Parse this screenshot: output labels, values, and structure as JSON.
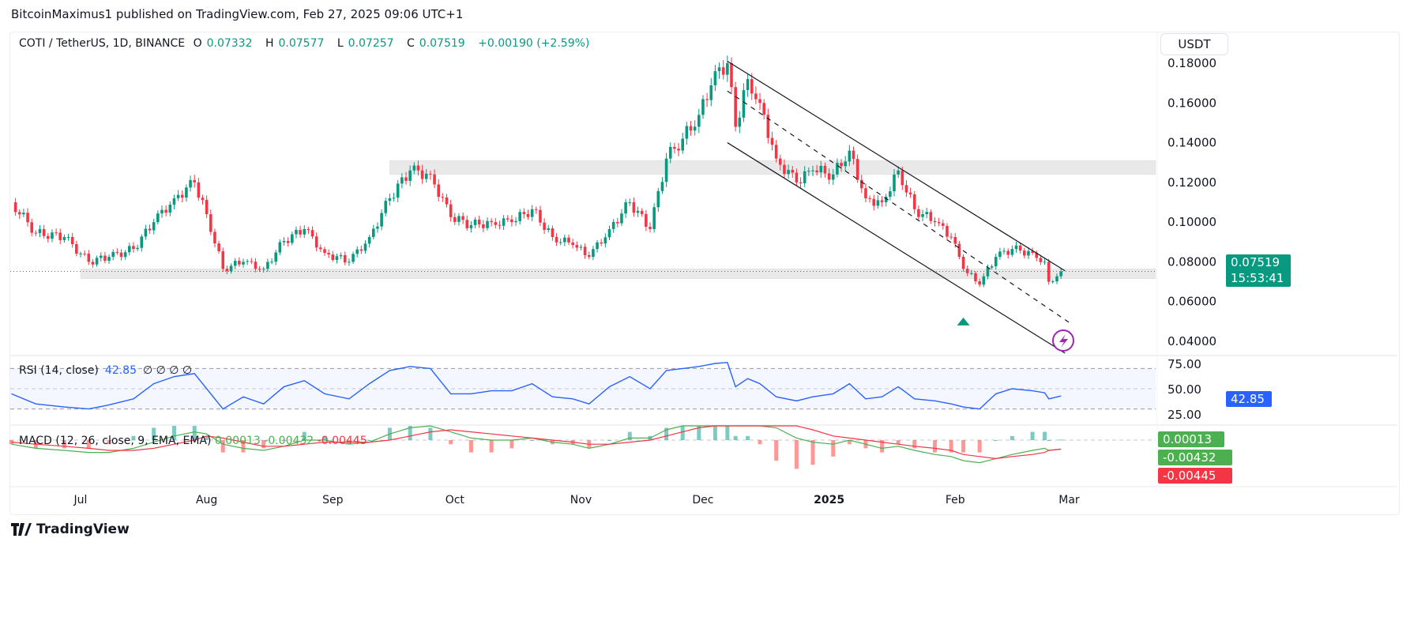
{
  "publisher_line": "BitcoinMaximus1 published on TradingView.com, Feb 27, 2025 09:06 UTC+1",
  "footer_brand": "TradingView",
  "legend": {
    "symbol": "COTI / TetherUS, 1D, BINANCE",
    "o_label": "O",
    "o": "0.07332",
    "h_label": "H",
    "h": "0.07577",
    "l_label": "L",
    "l": "0.07257",
    "c_label": "C",
    "c": "0.07519",
    "change": "+0.00190 (+2.59%)"
  },
  "currency_button": "USDT",
  "price_tag": {
    "price": "0.07519",
    "countdown": "15:53:41"
  },
  "rsi_legend": {
    "title": "RSI (14, close)",
    "value": "42.85",
    "extras": "∅ ∅ ∅ ∅",
    "tag": "42.85"
  },
  "macd_legend": {
    "title": "MACD (12, 26, close, 9, EMA, EMA)",
    "hist": "0.00013",
    "macd": "-0.00432",
    "signal": "-0.00445"
  },
  "colors": {
    "up": "#089981",
    "down": "#f23645",
    "rsi": "#2962ff",
    "macd_line": "#4caf50",
    "signal_line": "#f23645",
    "zone": "#e0e0e0",
    "alert": "#9c27b0"
  },
  "icons": [
    "tradingview-logo-icon",
    "lightning-alert-icon",
    "buy-arrow-icon"
  ],
  "chart_data": [
    {
      "type": "candlestick",
      "title": "COTI / TetherUS, 1D, BINANCE",
      "ylim": [
        0.03,
        0.19
      ],
      "yticks": [
        "0.18000",
        "0.16000",
        "0.14000",
        "0.12000",
        "0.10000",
        "0.08000",
        "0.06000",
        "0.04000"
      ],
      "xticks": [
        "Jul",
        "Aug",
        "Sep",
        "Oct",
        "Nov",
        "Dec",
        "2025",
        "Feb",
        "Mar"
      ],
      "grid": false,
      "closes": [
        [
          "2024-06-14",
          0.11
        ],
        [
          "2024-06-20",
          0.0945
        ],
        [
          "2024-06-27",
          0.0925
        ],
        [
          "2024-07-03",
          0.08
        ],
        [
          "2024-07-08",
          0.0825
        ],
        [
          "2024-07-14",
          0.0865
        ],
        [
          "2024-07-19",
          0.1
        ],
        [
          "2024-07-24",
          0.112
        ],
        [
          "2024-07-29",
          0.12
        ],
        [
          "2024-08-01",
          0.104
        ],
        [
          "2024-08-05",
          0.0765
        ],
        [
          "2024-08-10",
          0.08
        ],
        [
          "2024-08-15",
          0.0765
        ],
        [
          "2024-08-20",
          0.0905
        ],
        [
          "2024-08-25",
          0.0965
        ],
        [
          "2024-08-30",
          0.0845
        ],
        [
          "2024-09-05",
          0.08
        ],
        [
          "2024-09-10",
          0.0925
        ],
        [
          "2024-09-15",
          0.112
        ],
        [
          "2024-09-20",
          0.126
        ],
        [
          "2024-09-25",
          0.124
        ],
        [
          "2024-09-30",
          0.1025
        ],
        [
          "2024-10-05",
          0.0985
        ],
        [
          "2024-10-10",
          0.1
        ],
        [
          "2024-10-15",
          0.1
        ],
        [
          "2024-10-20",
          0.1065
        ],
        [
          "2024-10-25",
          0.0925
        ],
        [
          "2024-10-30",
          0.0885
        ],
        [
          "2024-11-03",
          0.0825
        ],
        [
          "2024-11-08",
          0.0965
        ],
        [
          "2024-11-13",
          0.11
        ],
        [
          "2024-11-18",
          0.0965
        ],
        [
          "2024-11-22",
          0.132
        ],
        [
          "2024-11-26",
          0.142
        ],
        [
          "2024-11-30",
          0.154
        ],
        [
          "2024-12-04",
          0.176
        ],
        [
          "2024-12-07",
          0.18
        ],
        [
          "2024-12-09",
          0.148
        ],
        [
          "2024-12-12",
          0.172
        ],
        [
          "2024-12-15",
          0.16
        ],
        [
          "2024-12-19",
          0.132
        ],
        [
          "2024-12-24",
          0.12
        ],
        [
          "2024-12-28",
          0.126
        ],
        [
          "2025-01-02",
          0.124
        ],
        [
          "2025-01-06",
          0.136
        ],
        [
          "2025-01-10",
          0.112
        ],
        [
          "2025-01-14",
          0.11
        ],
        [
          "2025-01-18",
          0.126
        ],
        [
          "2025-01-22",
          0.1065
        ],
        [
          "2025-01-27",
          0.1
        ],
        [
          "2025-01-31",
          0.0925
        ],
        [
          "2025-02-03",
          0.0765
        ],
        [
          "2025-02-07",
          0.0685
        ],
        [
          "2025-02-11",
          0.0825
        ],
        [
          "2025-02-15",
          0.0865
        ],
        [
          "2025-02-20",
          0.0845
        ],
        [
          "2025-02-23",
          0.08
        ],
        [
          "2025-02-24",
          0.07
        ],
        [
          "2025-02-27",
          0.07519
        ]
      ],
      "zones": [
        {
          "from": "2024-09-15",
          "low": 0.124,
          "high": 0.131
        },
        {
          "from": "2024-07-01",
          "low": 0.0715,
          "high": 0.0765
        }
      ],
      "channel": [
        {
          "style": "solid",
          "from": [
            "2024-12-07",
            0.181
          ],
          "to": [
            "2025-02-28",
            0.0755
          ]
        },
        {
          "style": "dashed",
          "from": [
            "2024-12-07",
            0.166
          ],
          "to": [
            "2025-03-01",
            0.0495
          ]
        },
        {
          "style": "solid",
          "from": [
            "2024-12-07",
            0.14
          ],
          "to": [
            "2025-02-28",
            0.034
          ]
        }
      ],
      "markers": [
        {
          "type": "buy-arrow",
          "date": "2025-02-03",
          "price": 0.05
        }
      ]
    },
    {
      "type": "line",
      "title": "RSI (14, close)",
      "ylim": [
        15,
        85
      ],
      "yticks": [
        "75.00",
        "50.00",
        "25.00"
      ],
      "bands": [
        70,
        50,
        30
      ],
      "values": [
        45,
        35,
        32,
        30,
        34,
        40,
        55,
        62,
        65,
        50,
        30,
        42,
        35,
        52,
        58,
        45,
        40,
        55,
        68,
        72,
        70,
        45,
        45,
        48,
        48,
        55,
        42,
        40,
        35,
        52,
        62,
        50,
        68,
        70,
        72,
        75,
        76,
        52,
        60,
        55,
        42,
        38,
        42,
        45,
        55,
        40,
        42,
        52,
        40,
        38,
        35,
        32,
        30,
        45,
        50,
        48,
        46,
        40,
        42.85
      ]
    },
    {
      "type": "line",
      "title": "MACD (12, 26, close, 9, EMA, EMA)",
      "macd": [
        -0.002,
        -0.004,
        -0.005,
        -0.006,
        -0.006,
        -0.004,
        -0.001,
        0.002,
        0.004,
        0.003,
        -0.002,
        -0.004,
        -0.005,
        -0.003,
        0.0,
        0.0,
        -0.002,
        -0.001,
        0.003,
        0.006,
        0.007,
        0.004,
        0.001,
        0.0,
        0.0,
        0.001,
        -0.001,
        -0.002,
        -0.004,
        -0.002,
        0.001,
        0.001,
        0.005,
        0.008,
        0.011,
        0.015,
        0.017,
        0.014,
        0.014,
        0.012,
        0.006,
        0.001,
        -0.001,
        -0.002,
        0.0,
        -0.002,
        -0.004,
        -0.003,
        -0.005,
        -0.007,
        -0.008,
        -0.01,
        -0.011,
        -0.009,
        -0.007,
        -0.005,
        -0.004,
        -0.005,
        -0.00432
      ],
      "signal": [
        -0.001,
        -0.002,
        -0.003,
        -0.004,
        -0.005,
        -0.005,
        -0.004,
        -0.002,
        0.0,
        0.002,
        0.001,
        -0.001,
        -0.003,
        -0.003,
        -0.002,
        -0.001,
        -0.001,
        -0.001,
        0.0,
        0.002,
        0.004,
        0.005,
        0.004,
        0.003,
        0.002,
        0.001,
        0.0,
        -0.001,
        -0.002,
        -0.002,
        -0.001,
        0.0,
        0.002,
        0.004,
        0.006,
        0.009,
        0.012,
        0.013,
        0.013,
        0.013,
        0.011,
        0.008,
        0.005,
        0.002,
        0.001,
        0.0,
        -0.001,
        -0.002,
        -0.003,
        -0.004,
        -0.005,
        -0.007,
        -0.008,
        -0.009,
        -0.008,
        -0.007,
        -0.006,
        -0.005,
        -0.00445
      ]
    }
  ]
}
